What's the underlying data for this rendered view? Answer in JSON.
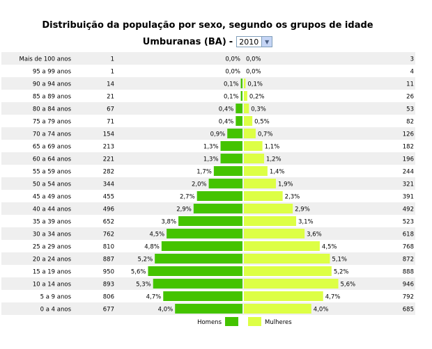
{
  "header": {
    "title": "Distribuição da população por sexo, segundo os grupos de idade",
    "place": "Umburanas (BA)",
    "separator": "-",
    "year_select": {
      "value": "2010"
    }
  },
  "colors": {
    "men": "#44c300",
    "women": "#ddff45",
    "row_alt": "#efefef",
    "row": "#ffffff"
  },
  "chart_data": {
    "type": "bar",
    "title": "Distribuição da população por sexo, segundo os grupos de idade",
    "subtitle": "Umburanas (BA) - 2010",
    "categories": [
      "Mais de 100 anos",
      "95 a 99 anos",
      "90 a 94 anos",
      "85 a 89 anos",
      "80 a 84 anos",
      "75 a 79 anos",
      "70 a 74 anos",
      "65 a 69 anos",
      "60 a 64 anos",
      "55 a 59 anos",
      "50 a 54 anos",
      "45 a 49 anos",
      "40 a 44 anos",
      "35 a 39 anos",
      "30 a 34 anos",
      "25 a 29 anos",
      "20 a 24 anos",
      "15 a 19 anos",
      "10 a 14 anos",
      "5 a 9 anos",
      "0 a 4 anos"
    ],
    "series": [
      {
        "name": "Homens",
        "counts": [
          1,
          1,
          14,
          21,
          67,
          71,
          154,
          213,
          221,
          282,
          344,
          455,
          496,
          652,
          762,
          810,
          887,
          950,
          893,
          806,
          677
        ],
        "percent_labels": [
          "0,0%",
          "0,0%",
          "0,1%",
          "0,1%",
          "0,4%",
          "0,4%",
          "0,9%",
          "1,3%",
          "1,3%",
          "1,7%",
          "2,0%",
          "2,7%",
          "2,9%",
          "3,8%",
          "4,5%",
          "4,8%",
          "5,2%",
          "5,6%",
          "5,3%",
          "4,7%",
          "4,0%"
        ],
        "values": [
          0.0,
          0.0,
          0.1,
          0.1,
          0.4,
          0.4,
          0.9,
          1.3,
          1.3,
          1.7,
          2.0,
          2.7,
          2.9,
          3.8,
          4.5,
          4.8,
          5.2,
          5.6,
          5.3,
          4.7,
          4.0
        ]
      },
      {
        "name": "Mulheres",
        "counts": [
          3,
          4,
          11,
          26,
          53,
          82,
          126,
          182,
          196,
          244,
          321,
          391,
          492,
          523,
          618,
          768,
          872,
          888,
          946,
          792,
          685
        ],
        "percent_labels": [
          "0,0%",
          "0,0%",
          "0,1%",
          "0,2%",
          "0,3%",
          "0,5%",
          "0,7%",
          "1,1%",
          "1,2%",
          "1,4%",
          "1,9%",
          "2,3%",
          "2,9%",
          "3,1%",
          "3,6%",
          "4,5%",
          "5,1%",
          "5,2%",
          "5,6%",
          "4,7%",
          "4,0%"
        ],
        "values": [
          0.0,
          0.0,
          0.1,
          0.2,
          0.3,
          0.5,
          0.7,
          1.1,
          1.2,
          1.4,
          1.9,
          2.3,
          2.9,
          3.1,
          3.6,
          4.5,
          5.1,
          5.2,
          5.6,
          4.7,
          4.0
        ]
      }
    ],
    "legend": {
      "placement": "bottom-center"
    },
    "grid": false
  }
}
